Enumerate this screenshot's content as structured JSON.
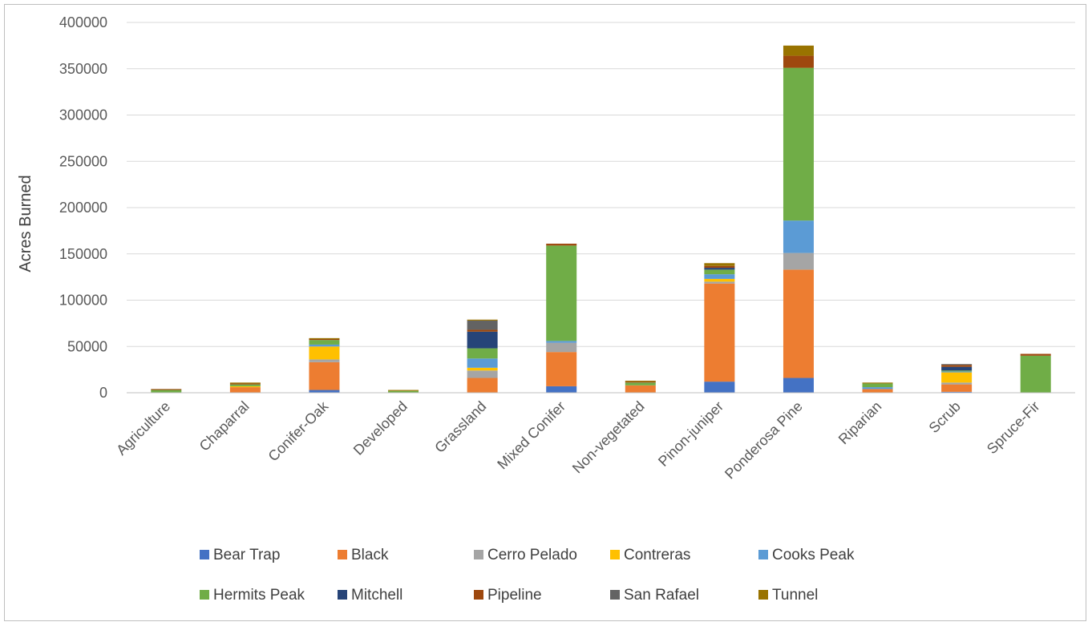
{
  "chart_data": {
    "type": "bar",
    "stacked": true,
    "title": "",
    "xlabel": "",
    "ylabel": "Acres Burned",
    "ylim": [
      0,
      400000
    ],
    "yticks": [
      0,
      50000,
      100000,
      150000,
      200000,
      250000,
      300000,
      350000,
      400000
    ],
    "grid": true,
    "legend_position": "bottom",
    "categories": [
      "Agriculture",
      "Chaparral",
      "Conifer-Oak",
      "Developed",
      "Grassland",
      "Mixed Conifer",
      "Non-vegetated",
      "Pinon-juniper",
      "Ponderosa Pine",
      "Riparian",
      "Scrub",
      "Spruce-Fir"
    ],
    "series": [
      {
        "name": "Bear Trap",
        "color": "#4472c4",
        "values": [
          0,
          0,
          3000,
          0,
          0,
          7000,
          0,
          12000,
          16000,
          0,
          1000,
          0
        ]
      },
      {
        "name": "Black",
        "color": "#ed7d31",
        "values": [
          0,
          6000,
          30000,
          0,
          16000,
          37000,
          8000,
          106000,
          117000,
          4000,
          8000,
          0
        ]
      },
      {
        "name": "Cerro Pelado",
        "color": "#a5a5a5",
        "values": [
          0,
          0,
          3000,
          0,
          8000,
          10000,
          0,
          2000,
          18000,
          0,
          2000,
          0
        ]
      },
      {
        "name": "Contreras",
        "color": "#ffc000",
        "values": [
          0,
          1000,
          14000,
          0,
          3000,
          0,
          0,
          3000,
          0,
          0,
          11000,
          0
        ]
      },
      {
        "name": "Cooks Peak",
        "color": "#5b9bd5",
        "values": [
          0,
          0,
          2000,
          0,
          10000,
          2000,
          0,
          5000,
          35000,
          2000,
          1000,
          0
        ]
      },
      {
        "name": "Hermits Peak",
        "color": "#70ad47",
        "values": [
          3000,
          2000,
          5000,
          2000,
          11000,
          103000,
          3000,
          5000,
          165000,
          4000,
          1000,
          40000
        ]
      },
      {
        "name": "Mitchell",
        "color": "#264478",
        "values": [
          0,
          0,
          0,
          0,
          18000,
          0,
          0,
          2000,
          0,
          0,
          4000,
          0
        ]
      },
      {
        "name": "Pipeline",
        "color": "#9e480e",
        "values": [
          1000,
          1000,
          1000,
          0,
          2000,
          2000,
          1000,
          2000,
          13000,
          0,
          2000,
          2000
        ]
      },
      {
        "name": "San Rafael",
        "color": "#636363",
        "values": [
          0,
          0,
          0,
          0,
          10000,
          0,
          0,
          0,
          0,
          0,
          1000,
          0
        ]
      },
      {
        "name": "Tunnel",
        "color": "#997300",
        "values": [
          0,
          1000,
          1000,
          1000,
          1000,
          0,
          1000,
          3000,
          11000,
          1000,
          0,
          0
        ]
      }
    ]
  }
}
